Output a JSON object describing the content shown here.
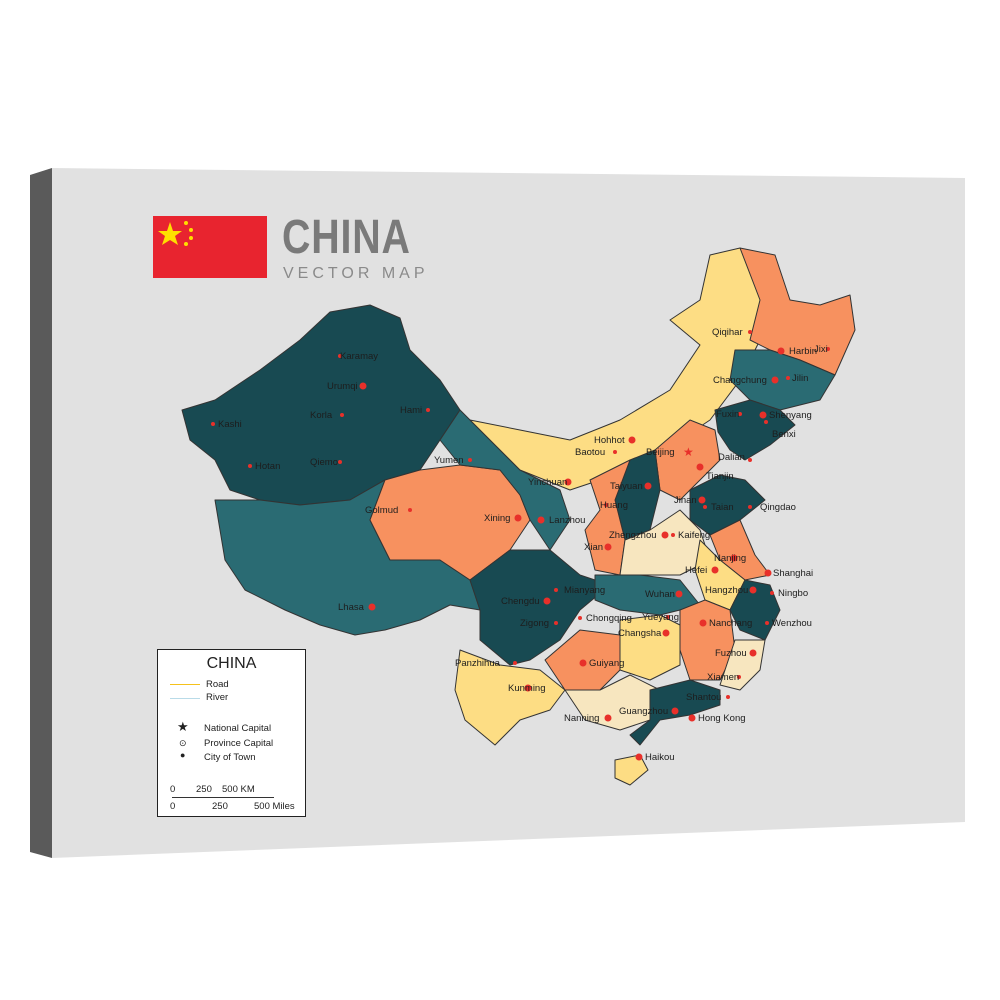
{
  "header": {
    "title": "CHINA",
    "subtitle": "VECTOR MAP"
  },
  "flag": {
    "colors": {
      "red": "#e8242f",
      "star": "#ffde00"
    }
  },
  "colors": {
    "background": "#e1e1e1",
    "canvas_side": "#5a5a5a",
    "dark_teal": "#184a52",
    "teal": "#2a6b73",
    "orange": "#f7915f",
    "yellow": "#fddd84",
    "cream": "#f7e6bf",
    "road": "#e9b93c",
    "river": "#c9e3ee",
    "capital_marker": "#e8302a"
  },
  "cities": [
    {
      "name": "Karamay",
      "type": "city"
    },
    {
      "name": "Urumqi",
      "type": "province-capital"
    },
    {
      "name": "Korla",
      "type": "city"
    },
    {
      "name": "Hami",
      "type": "city"
    },
    {
      "name": "Kashi",
      "type": "city"
    },
    {
      "name": "Hotan",
      "type": "city"
    },
    {
      "name": "Qiemo",
      "type": "city"
    },
    {
      "name": "Yumen",
      "type": "city"
    },
    {
      "name": "Golmud",
      "type": "city"
    },
    {
      "name": "Lhasa",
      "type": "province-capital"
    },
    {
      "name": "Xining",
      "type": "province-capital"
    },
    {
      "name": "Lanzhou",
      "type": "province-capital"
    },
    {
      "name": "Yinchuan",
      "type": "province-capital"
    },
    {
      "name": "Hohhot",
      "type": "province-capital"
    },
    {
      "name": "Baotou",
      "type": "city"
    },
    {
      "name": "Qiqihar",
      "type": "city"
    },
    {
      "name": "Harbin",
      "type": "province-capital"
    },
    {
      "name": "Jixi",
      "type": "city"
    },
    {
      "name": "Changchung",
      "type": "province-capital"
    },
    {
      "name": "Jilin",
      "type": "city"
    },
    {
      "name": "Fuxin",
      "type": "city"
    },
    {
      "name": "Shenyang",
      "type": "province-capital"
    },
    {
      "name": "Benxi",
      "type": "city"
    },
    {
      "name": "Dalian",
      "type": "city"
    },
    {
      "name": "Beijing",
      "type": "national-capital"
    },
    {
      "name": "Tianjin",
      "type": "province-capital"
    },
    {
      "name": "Taiyuan",
      "type": "province-capital"
    },
    {
      "name": "Huang",
      "type": "city"
    },
    {
      "name": "Jinan",
      "type": "province-capital"
    },
    {
      "name": "Taian",
      "type": "city"
    },
    {
      "name": "Qingdao",
      "type": "city"
    },
    {
      "name": "Zhengzhou",
      "type": "province-capital"
    },
    {
      "name": "Kaifeng",
      "type": "city"
    },
    {
      "name": "Xian",
      "type": "province-capital"
    },
    {
      "name": "Nanjing",
      "type": "province-capital"
    },
    {
      "name": "Hefei",
      "type": "province-capital"
    },
    {
      "name": "Shanghai",
      "type": "province-capital"
    },
    {
      "name": "Hangzhou",
      "type": "province-capital"
    },
    {
      "name": "Ningbo",
      "type": "city"
    },
    {
      "name": "Wenzhou",
      "type": "city"
    },
    {
      "name": "Chengdu",
      "type": "province-capital"
    },
    {
      "name": "Mianyang",
      "type": "city"
    },
    {
      "name": "Zigong",
      "type": "city"
    },
    {
      "name": "Chongqing",
      "type": "city"
    },
    {
      "name": "Wuhan",
      "type": "province-capital"
    },
    {
      "name": "Yueyang",
      "type": "city"
    },
    {
      "name": "Changsha",
      "type": "province-capital"
    },
    {
      "name": "Nanchang",
      "type": "province-capital"
    },
    {
      "name": "Fuzhou",
      "type": "province-capital"
    },
    {
      "name": "Xiamen",
      "type": "city"
    },
    {
      "name": "Panzhihua",
      "type": "city"
    },
    {
      "name": "Guiyang",
      "type": "province-capital"
    },
    {
      "name": "Kunming",
      "type": "province-capital"
    },
    {
      "name": "Nanning",
      "type": "province-capital"
    },
    {
      "name": "Guangzhou",
      "type": "province-capital"
    },
    {
      "name": "Shantou",
      "type": "city"
    },
    {
      "name": "Hong Kong",
      "type": "province-capital"
    },
    {
      "name": "Haikou",
      "type": "province-capital"
    }
  ],
  "legend": {
    "title": "CHINA",
    "lines": [
      {
        "label": "Road",
        "color": "#f5c21b"
      },
      {
        "label": "River",
        "color": "#b9dbe8"
      }
    ],
    "symbols": [
      {
        "label": "National Capital",
        "icon": "star-icon"
      },
      {
        "label": "Province Capital",
        "icon": "circle-dot-icon"
      },
      {
        "label": "City of Town",
        "icon": "dot-icon"
      }
    ],
    "scale": {
      "km_ticks": [
        "0",
        "250",
        "500 KM"
      ],
      "mile_ticks": [
        "0",
        "250",
        "500 Miles"
      ]
    }
  }
}
